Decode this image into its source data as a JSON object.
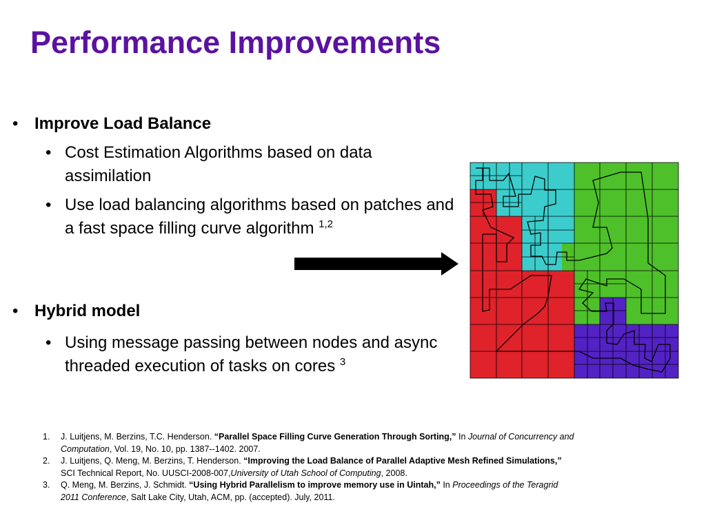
{
  "title": "Performance Improvements",
  "bullets": [
    {
      "text": "Improve Load Balance",
      "items": [
        {
          "text": "Cost Estimation Algorithms based on data assimilation"
        },
        {
          "text": "Use load balancing algorithms based on patches and a fast space filling curve algorithm",
          "sup": "1,2"
        }
      ]
    },
    {
      "text": "Hybrid model",
      "items": [
        {
          "text": "Using message passing between nodes and async threaded execution of tasks on cores",
          "sup": "3"
        }
      ]
    }
  ],
  "references": [
    {
      "number": "1.",
      "parts": [
        {
          "text": "J. Luitjens, M. Berzins, T.C. Henderson. "
        },
        {
          "text": "“Parallel Space Filling Curve Generation Through Sorting,”",
          "style": "bold"
        },
        {
          "text": " In "
        },
        {
          "text": "Journal of Concurrency and Computation",
          "style": "italic"
        },
        {
          "text": ", Vol. 19, No. 10, pp. 1387--1402. 2007."
        }
      ]
    },
    {
      "number": "2.",
      "parts": [
        {
          "text": "J. Luitjens, Q. Meng, M. Berzins, T. Henderson. "
        },
        {
          "text": "“Improving the Load Balance of Parallel Adaptive Mesh Refined Simulations,”",
          "style": "bold"
        },
        {
          "text": " SCI Technical Report, No. UUSCI-2008-007,"
        },
        {
          "text": "University of Utah School of Computing",
          "style": "italic"
        },
        {
          "text": ", 2008."
        }
      ]
    },
    {
      "number": "3.",
      "parts": [
        {
          "text": "Q. Meng, M. Berzins, J. Schmidt. "
        },
        {
          "text": "“Using Hybrid Parallelism to improve memory use in Uintah,”",
          "style": "bold"
        },
        {
          "text": " In "
        },
        {
          "text": "Proceedings of the Teragrid 2011 Conference",
          "style": "italic"
        },
        {
          "text": ", Salt Lake City, Utah, ACM, pp. (accepted). July, 2011."
        }
      ]
    }
  ]
}
